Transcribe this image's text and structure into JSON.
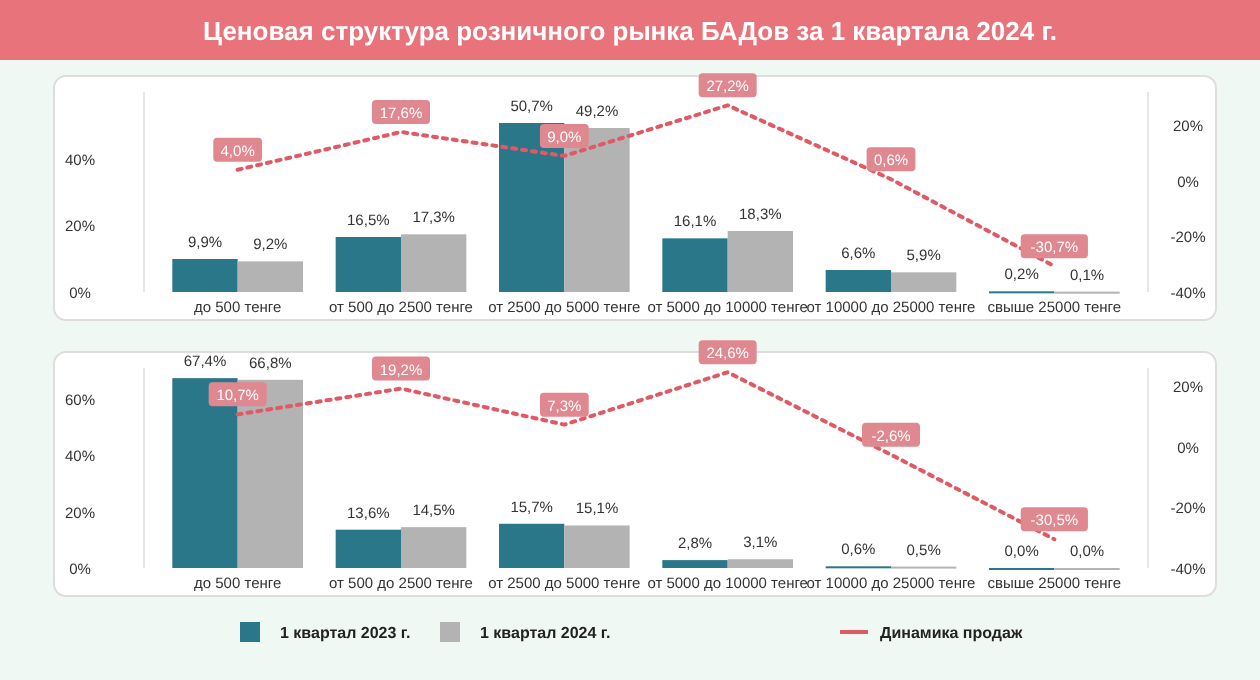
{
  "chart_data": [
    {
      "type": "bar",
      "title": "Ценовая структура розничного рынка БАДов за 1 квартала 2024 г.",
      "categories": [
        "до 500 тенге",
        "от 500 до 2500 тенге",
        "от 2500 до 5000 тенге",
        "от 5000 до 10000 тенге",
        "от 10000 до 25000 тенге",
        "свыше 25000 тенге"
      ],
      "series": [
        {
          "color": "#2a7789",
          "values": [
            9.9,
            16.5,
            50.7,
            16.1,
            6.6,
            0.2
          ],
          "value_labels": [
            "9,9%",
            "16,5%",
            "50,7%",
            "16,1%",
            "6,6%",
            "0,2%"
          ]
        },
        {
          "color": "#b3b3b3",
          "values": [
            9.2,
            17.3,
            49.2,
            18.3,
            5.9,
            0.1
          ],
          "value_labels": [
            "9,2%",
            "17,3%",
            "49,2%",
            "18,3%",
            "5,9%",
            "0,1%"
          ]
        },
        {
          "type": "line",
          "axis": "y2",
          "color": "#e05a65",
          "line_style": "dotted",
          "values": [
            4.0,
            17.6,
            9.0,
            27.2,
            0.6,
            -30.7
          ],
          "value_labels": [
            "4,0%",
            "17,6%",
            "9,0%",
            "27,2%",
            "0,6%",
            "-30,7%"
          ]
        }
      ],
      "ylim": [
        0,
        60
      ],
      "yticks": [
        {
          "value": 0,
          "label": "0%"
        },
        {
          "value": 20,
          "label": "20%"
        },
        {
          "value": 40,
          "label": "40%"
        }
      ],
      "y2lim": [
        -40,
        32
      ],
      "y2ticks": [
        {
          "value": -40,
          "label": "-40%"
        },
        {
          "value": -20,
          "label": "-20%"
        },
        {
          "value": 0,
          "label": "0%"
        },
        {
          "value": 20,
          "label": "20%"
        }
      ]
    },
    {
      "type": "bar",
      "categories": [
        "до 500 тенге",
        "от 500 до 2500 тенге",
        "от 2500 до 5000 тенге",
        "от 5000 до 10000 тенге",
        "от 10000 до 25000 тенге",
        "свыше 25000 тенге"
      ],
      "series": [
        {
          "name": "1 квартал 2023 г.",
          "color": "#2a7789",
          "values": [
            67.4,
            13.6,
            15.7,
            2.8,
            0.6,
            0.0
          ],
          "value_labels": [
            "67,4%",
            "13,6%",
            "15,7%",
            "2,8%",
            "0,6%",
            "0,0%"
          ]
        },
        {
          "name": "1 квартал 2024 г.",
          "color": "#b3b3b3",
          "values": [
            66.8,
            14.5,
            15.1,
            3.1,
            0.5,
            0.0
          ],
          "value_labels": [
            "66,8%",
            "14,5%",
            "15,1%",
            "3,1%",
            "0,5%",
            "0,0%"
          ]
        },
        {
          "type": "line",
          "axis": "y2",
          "name": "Динамика продаж",
          "color": "#e05a65",
          "line_style": "dotted",
          "values": [
            10.7,
            19.2,
            7.3,
            24.6,
            -2.6,
            -30.5
          ],
          "value_labels": [
            "10,7%",
            "19,2%",
            "7,3%",
            "24,6%",
            "-2,6%",
            "-30,5%"
          ]
        }
      ],
      "ylim": [
        0,
        71
      ],
      "yticks": [
        {
          "value": 0,
          "label": "0%"
        },
        {
          "value": 20,
          "label": "20%"
        },
        {
          "value": 40,
          "label": "40%"
        },
        {
          "value": 60,
          "label": "60%"
        }
      ],
      "y2lim": [
        -40,
        26
      ],
      "y2ticks": [
        {
          "value": -40,
          "label": "-40%"
        },
        {
          "value": -20,
          "label": "-20%"
        },
        {
          "value": 0,
          "label": "0%"
        },
        {
          "value": 20,
          "label": "20%"
        }
      ],
      "legend": "bottom"
    }
  ]
}
